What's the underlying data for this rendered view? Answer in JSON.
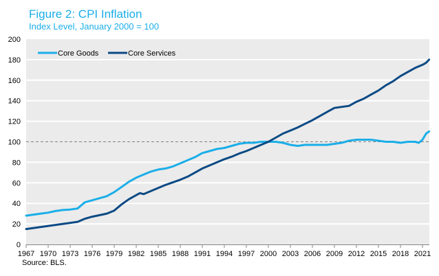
{
  "chart_data": {
    "type": "line",
    "title": "Figure 2: CPI Inflation",
    "subtitle": "Index Level,  January 2000 = 100",
    "xlabel": "",
    "ylabel": "",
    "source": "Source: BLS.",
    "xlim": [
      1967,
      2021.9
    ],
    "ylim": [
      0,
      200
    ],
    "x_ticks": [
      1967,
      1970,
      1973,
      1976,
      1979,
      1982,
      1985,
      1988,
      1991,
      1994,
      1997,
      2000,
      2003,
      2006,
      2009,
      2012,
      2015,
      2018,
      2021
    ],
    "y_ticks": [
      0,
      20,
      40,
      60,
      80,
      100,
      120,
      140,
      160,
      180,
      200
    ],
    "grid": true,
    "reference_line": {
      "y": 100,
      "style": "dashed"
    },
    "legend": {
      "position": "top-left"
    },
    "series": [
      {
        "name": "Core Goods",
        "color": "#1aaee8",
        "x": [
          1967,
          1968,
          1969,
          1970,
          1971,
          1972,
          1973,
          1974,
          1974.5,
          1975,
          1976,
          1977,
          1978,
          1979,
          1980,
          1981,
          1982,
          1983,
          1984,
          1985,
          1986,
          1987,
          1988,
          1989,
          1990,
          1991,
          1992,
          1993,
          1994,
          1995,
          1996,
          1997,
          1998,
          1999,
          2000,
          2001,
          2002,
          2003,
          2004,
          2005,
          2006,
          2007,
          2008,
          2009,
          2010,
          2011,
          2012,
          2013,
          2014,
          2015,
          2016,
          2017,
          2018,
          2019,
          2020,
          2020.5,
          2021,
          2021.5,
          2021.9
        ],
        "values": [
          28,
          29,
          30,
          31,
          32.5,
          33.5,
          34,
          35,
          38,
          41,
          43,
          45,
          47,
          51,
          56,
          61,
          65,
          68,
          71,
          73,
          74,
          76,
          79,
          82,
          85,
          89,
          91,
          93,
          94,
          96,
          98,
          99,
          99,
          100,
          100,
          100,
          99,
          97,
          96,
          97,
          97,
          97,
          97,
          98,
          99,
          101,
          102,
          102,
          102,
          101,
          100,
          100,
          99,
          100,
          100,
          99,
          102,
          108,
          110
        ]
      },
      {
        "name": "Core Services",
        "color": "#0b4a84",
        "x": [
          1967,
          1968,
          1969,
          1970,
          1971,
          1972,
          1973,
          1974,
          1975,
          1976,
          1977,
          1978,
          1979,
          1980,
          1981,
          1982,
          1982.5,
          1983,
          1984,
          1985,
          1986,
          1987,
          1988,
          1989,
          1990,
          1991,
          1992,
          1993,
          1994,
          1995,
          1996,
          1997,
          1998,
          1999,
          2000,
          2001,
          2002,
          2003,
          2004,
          2005,
          2006,
          2007,
          2008,
          2009,
          2010,
          2011,
          2012,
          2013,
          2014,
          2015,
          2016,
          2017,
          2018,
          2019,
          2020,
          2021,
          2021.5,
          2021.9
        ],
        "values": [
          15,
          16,
          17,
          18,
          19,
          20,
          21,
          22,
          25,
          27,
          28.5,
          30,
          33,
          39,
          44,
          48,
          50,
          49,
          52,
          55,
          58,
          60.5,
          63,
          66,
          70,
          74,
          77,
          80,
          83,
          85.5,
          88.5,
          91,
          94,
          97,
          100,
          104,
          108,
          111,
          114,
          117.5,
          121,
          125,
          129,
          133,
          134,
          135,
          139,
          142,
          146,
          150,
          155,
          159,
          164,
          168,
          172,
          175,
          177,
          180
        ]
      }
    ]
  }
}
